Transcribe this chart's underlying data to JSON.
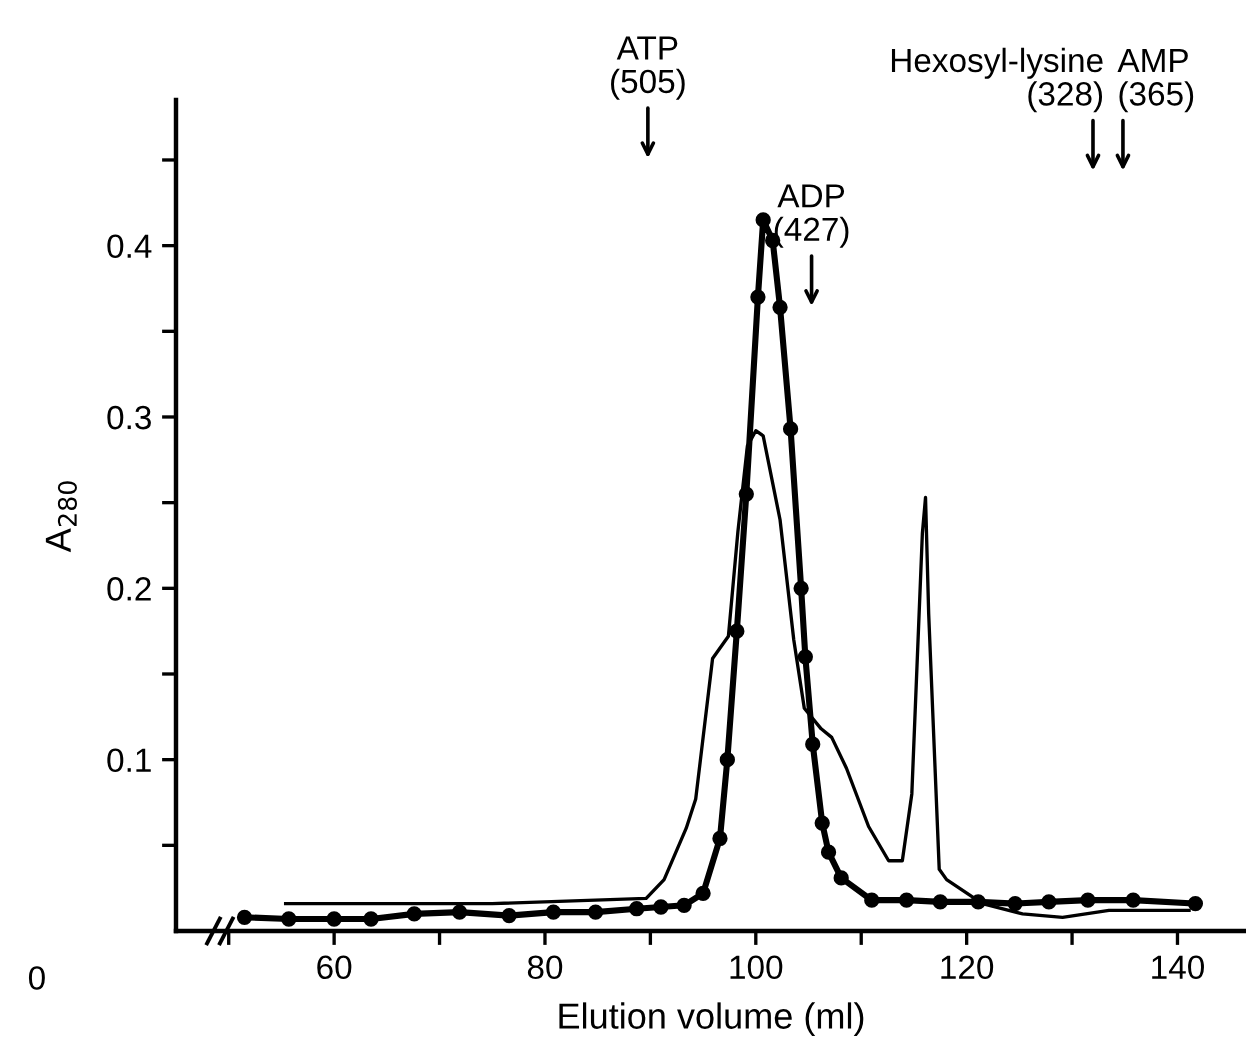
{
  "chart_data": {
    "type": "line",
    "xlabel": "Elution volume (ml)",
    "ylabel": "A$_{280}$",
    "xlim": [
      45,
      146.5
    ],
    "ylim": [
      0,
      0.485
    ],
    "xticks": [
      {
        "value": 50,
        "label": null
      },
      60,
      {
        "value": 70,
        "label": null
      },
      80,
      {
        "value": 90,
        "label": null
      },
      100,
      {
        "value": 110,
        "label": null
      },
      120,
      {
        "value": 130,
        "label": null
      },
      140
    ],
    "yticks": [
      {
        "value": 0.05,
        "label": null
      },
      0.1,
      {
        "value": 0.15,
        "label": null
      },
      0.2,
      {
        "value": 0.25,
        "label": null
      },
      0.3,
      {
        "value": 0.35,
        "label": null
      },
      0.4,
      {
        "value": 0.45,
        "label": null
      }
    ],
    "grid": false,
    "legend": false,
    "series": [
      {
        "color": "#000000",
        "marker": "none",
        "line_style": "solid",
        "x": [
          55.4,
          75,
          89.6,
          91.3,
          93.4,
          94.3,
          95.9,
          97.4,
          98.3,
          99.2,
          100.0,
          100.7,
          102.3,
          103.6,
          104.6,
          106.2,
          107.2,
          108.6,
          110.7,
          112.6,
          113.9,
          114.8,
          115.8,
          116.1,
          116.4,
          117.4,
          118.1,
          121.5,
          125.3,
          129.1,
          133.5,
          141.1
        ],
        "values": [
          0.016,
          0.016,
          0.019,
          0.03,
          0.06,
          0.077,
          0.159,
          0.172,
          0.233,
          0.283,
          0.292,
          0.289,
          0.24,
          0.17,
          0.13,
          0.118,
          0.113,
          0.095,
          0.061,
          0.041,
          0.041,
          0.08,
          0.232,
          0.253,
          0.185,
          0.036,
          0.03,
          0.016,
          0.01,
          0.008,
          0.012,
          0.012
        ]
      },
      {
        "color": "#000000",
        "marker": "circle",
        "line_style": "solid",
        "x": [
          51.5,
          55.7,
          60,
          63.5,
          67.6,
          71.9,
          76.6,
          80.8,
          84.8,
          88.7,
          91.0,
          93.2,
          95.0,
          96.6,
          97.3,
          98.2,
          99.1,
          100.2,
          100.7,
          101.6,
          102.3,
          103.3,
          104.3,
          104.7,
          105.4,
          106.3,
          106.9,
          108.1,
          111,
          114.3,
          117.5,
          121.1,
          124.6,
          127.8,
          131.5,
          135.8,
          141.7
        ],
        "values": [
          0.008,
          0.007,
          0.007,
          0.007,
          0.01,
          0.011,
          0.009,
          0.011,
          0.011,
          0.013,
          0.014,
          0.015,
          0.022,
          0.054,
          0.1,
          0.175,
          0.255,
          0.37,
          0.415,
          0.403,
          0.364,
          0.293,
          0.2,
          0.16,
          0.109,
          0.063,
          0.046,
          0.031,
          0.018,
          0.018,
          0.017,
          0.017,
          0.016,
          0.017,
          0.018,
          0.018,
          0.016
        ]
      }
    ],
    "annotations": [
      "0",
      "ATP\n(505)",
      "ADP\n(427)",
      "Hexosyl-lysine\n(328)",
      "AMP\n(365)"
    ]
  }
}
